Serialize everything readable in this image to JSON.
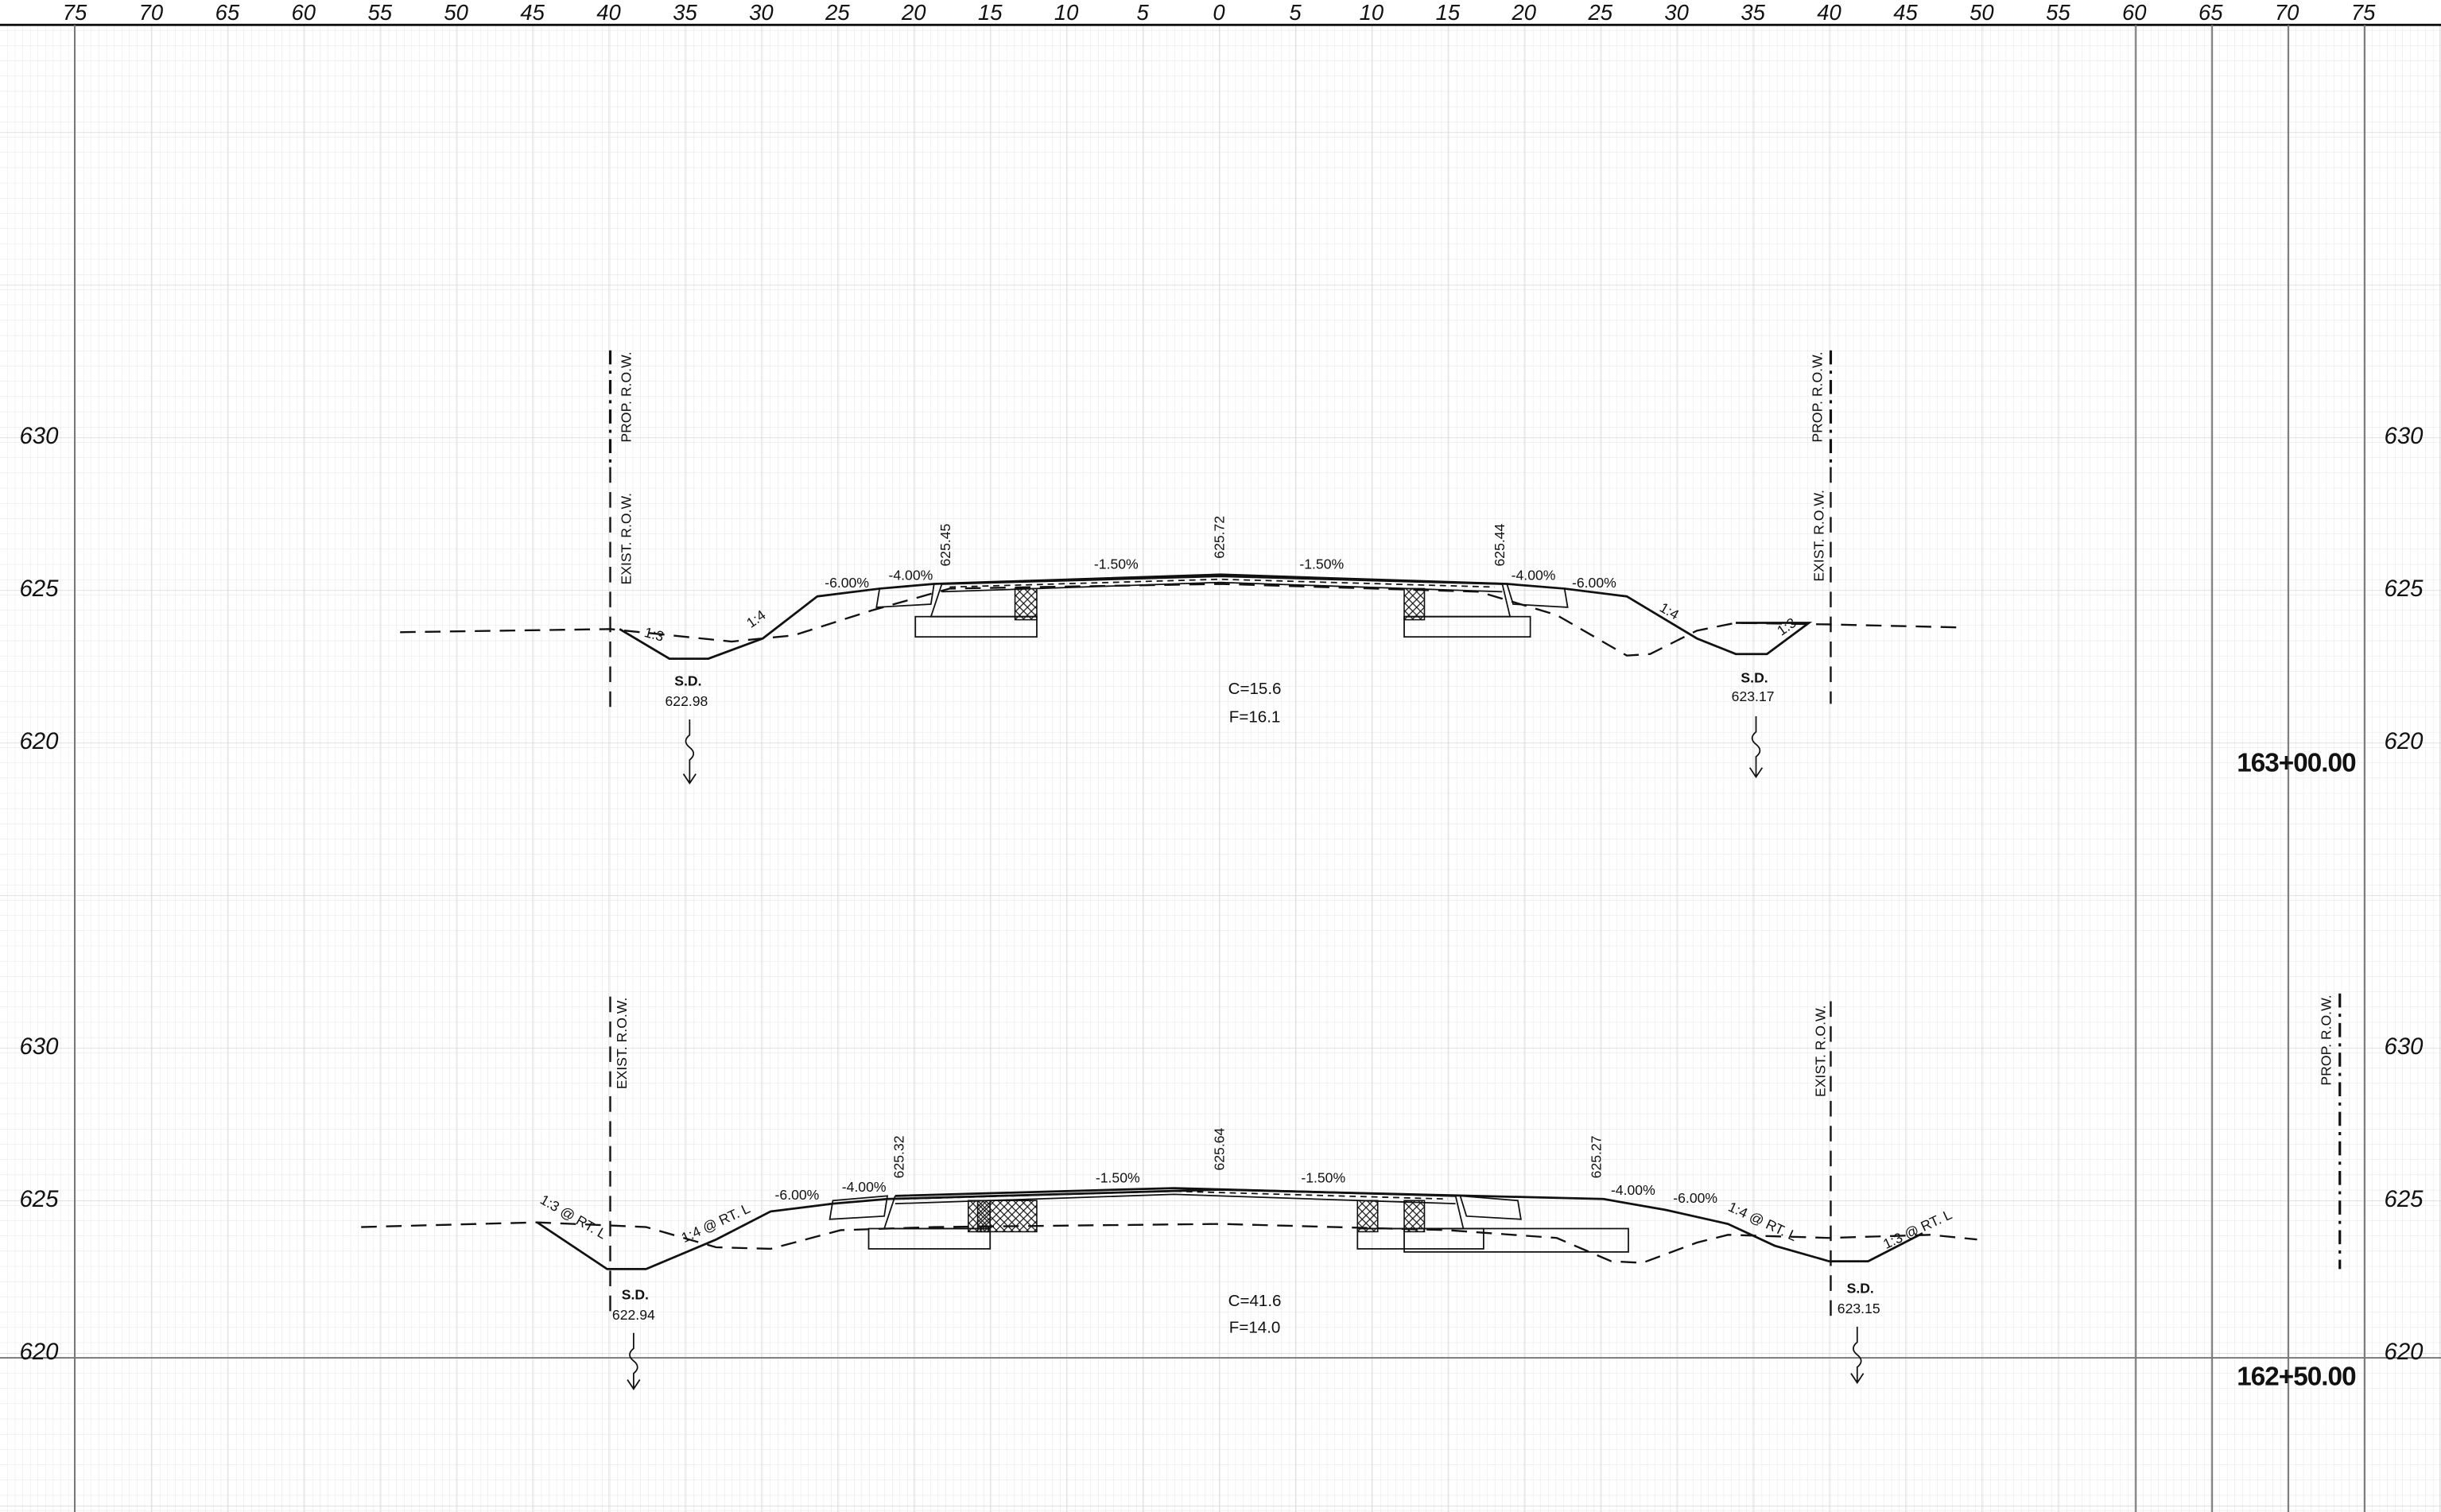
{
  "ruler": [
    75,
    70,
    65,
    60,
    55,
    50,
    45,
    40,
    35,
    30,
    25,
    20,
    15,
    10,
    5,
    0,
    5,
    10,
    15,
    20,
    25,
    30,
    35,
    40,
    45,
    50,
    55,
    60,
    65,
    70,
    75
  ],
  "sections": [
    {
      "station": "163+00.00",
      "elevations": [
        630,
        625,
        620
      ],
      "prop_row": "PROP. R.O.W.",
      "exist_row": "EXIST. R.O.W.",
      "drains": [
        {
          "label": "S.D.",
          "elevation": "622.98"
        },
        {
          "label": "S.D.",
          "elevation": "623.17"
        }
      ],
      "cut": "C=15.6",
      "fill": "F=16.1",
      "slopes": [
        "-6.00%",
        "-4.00%",
        "-1.50%",
        "-1.50%",
        "-4.00%",
        "-6.00%"
      ],
      "grade_elevations": [
        "625.45",
        "625.72",
        "625.44"
      ],
      "side_slopes": [
        "1:3",
        "1:4",
        "1:4",
        "1:3"
      ]
    },
    {
      "station": "162+50.00",
      "elevations": [
        630,
        625,
        620
      ],
      "prop_row": "PROP. R.O.W.",
      "exist_row": "EXIST. R.O.W.",
      "drains": [
        {
          "label": "S.D.",
          "elevation": "622.94"
        },
        {
          "label": "S.D.",
          "elevation": "623.15"
        }
      ],
      "cut": "C=41.6",
      "fill": "F=14.0",
      "slopes": [
        "-6.00%",
        "-4.00%",
        "-1.50%",
        "-1.50%",
        "-4.00%",
        "-6.00%"
      ],
      "grade_elevations": [
        "625.32",
        "625.64",
        "625.27"
      ],
      "side_slopes": [
        "1:3 @ RT. L",
        "1:4 @ RT. L",
        "1:4 @ RT. L",
        "1:3 @ RT. L"
      ]
    }
  ]
}
